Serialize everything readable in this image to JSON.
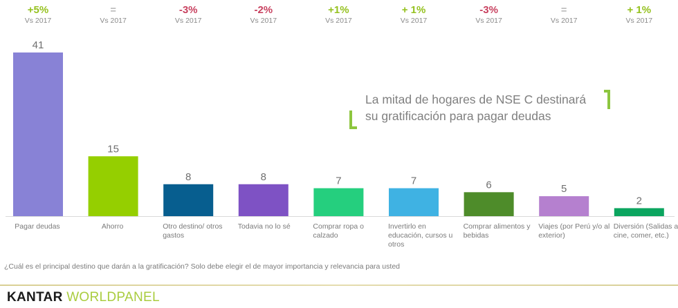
{
  "chart_data": {
    "type": "bar",
    "title": "",
    "xlabel": "",
    "ylabel": "",
    "ylim": [
      0,
      41
    ],
    "grid": false,
    "categories": [
      "Pagar deudas",
      "Ahorro",
      "Otro destino/ otros gastos",
      "Todavia no lo sé",
      "Comprar ropa o calzado",
      "Invertirlo en educación, cursos u otros",
      "Comprar alimentos y bebidas",
      "Viajes (por Perú y/o al exterior)",
      "Diversión (Salidas al cine, comer, etc.)"
    ],
    "values": [
      41,
      15,
      8,
      8,
      7,
      7,
      6,
      5,
      2
    ],
    "data_labels": [
      "41",
      "15",
      "8",
      "8",
      "7",
      "7",
      "6",
      "5",
      "2"
    ],
    "bar_colors": [
      "#8882d6",
      "#95cf00",
      "#075e8f",
      "#7e52c4",
      "#25cf7e",
      "#3fb2e3",
      "#4e8c2a",
      "#b580cf",
      "#0ba55f"
    ],
    "comparison": [
      {
        "value": "+5%",
        "sign": "pos",
        "label": "Vs 2017"
      },
      {
        "value": "=",
        "sign": "eq",
        "label": "Vs 2017"
      },
      {
        "value": "-3%",
        "sign": "neg",
        "label": "Vs 2017"
      },
      {
        "value": "-2%",
        "sign": "neg",
        "label": "Vs 2017"
      },
      {
        "value": "+1%",
        "sign": "pos",
        "label": "Vs 2017"
      },
      {
        "value": "+ 1%",
        "sign": "pos",
        "label": "Vs 2017"
      },
      {
        "value": "-3%",
        "sign": "neg",
        "label": "Vs 2017"
      },
      {
        "value": "=",
        "sign": "eq",
        "label": "Vs 2017"
      },
      {
        "value": "+ 1%",
        "sign": "pos",
        "label": "Vs 2017"
      }
    ],
    "annotations": [
      "La mitad de hogares de NSE C destinará su gratificación para pagar deudas"
    ]
  },
  "callout": {
    "line1": "La mitad de hogares de NSE C destinará",
    "line2": "su gratificación para pagar deudas"
  },
  "question": "¿Cuál es el principal destino que darán a la gratificación? Solo debe elegir el de mayor importancia y relevancia para usted",
  "logo": {
    "part1": "KANTAR",
    "part2": "WORLDPANEL"
  },
  "colors": {
    "positive": "#95c11f",
    "negative": "#c8415f",
    "accent": "#8dc63f"
  }
}
